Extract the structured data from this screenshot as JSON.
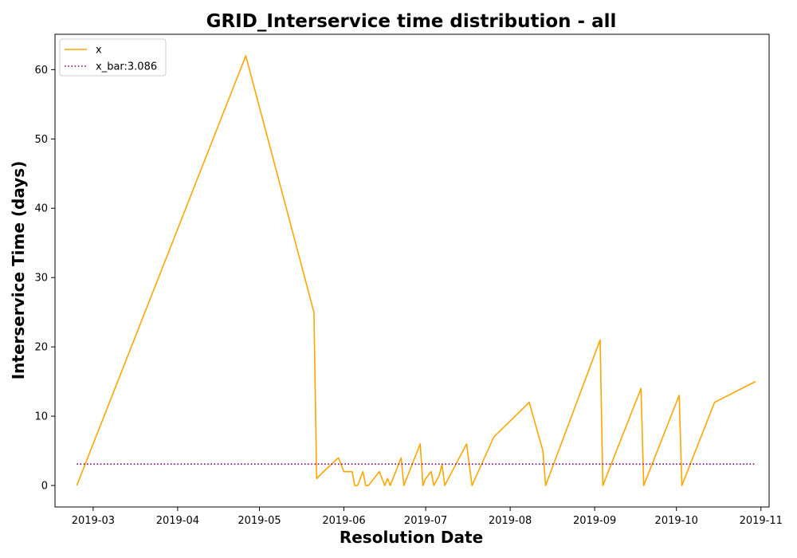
{
  "chart_data": {
    "type": "line",
    "title": "GRID_Interservice time distribution - all",
    "xlabel": "Resolution Date",
    "ylabel": "Interservice Time (days)",
    "xlim": [
      "2019-02-15",
      "2019-11-04"
    ],
    "ylim": [
      -3.1,
      65.1
    ],
    "x_ticks": [
      "2019-03-01",
      "2019-04-01",
      "2019-05-01",
      "2019-06-01",
      "2019-07-01",
      "2019-08-01",
      "2019-09-01",
      "2019-10-01",
      "2019-11-01"
    ],
    "x_tick_labels": [
      "2019-03",
      "2019-04",
      "2019-05",
      "2019-06",
      "2019-07",
      "2019-08",
      "2019-09",
      "2019-10",
      "2019-11"
    ],
    "y_ticks": [
      0,
      10,
      20,
      30,
      40,
      50,
      60
    ],
    "y_tick_labels": [
      "0",
      "10",
      "20",
      "30",
      "40",
      "50",
      "60"
    ],
    "grid": false,
    "legend_position": "top-left",
    "series": [
      {
        "name": "x",
        "style": "solid",
        "color": "#ffa500",
        "points": [
          [
            "2019-02-23",
            0
          ],
          [
            "2019-04-26",
            62
          ],
          [
            "2019-05-21",
            25
          ],
          [
            "2019-05-22",
            1
          ],
          [
            "2019-05-24",
            1.8
          ],
          [
            "2019-05-30",
            4
          ],
          [
            "2019-06-01",
            2
          ],
          [
            "2019-06-04",
            2
          ],
          [
            "2019-06-05",
            0
          ],
          [
            "2019-06-06",
            0
          ],
          [
            "2019-06-08",
            2
          ],
          [
            "2019-06-09",
            0
          ],
          [
            "2019-06-10",
            0
          ],
          [
            "2019-06-14",
            2
          ],
          [
            "2019-06-16",
            0
          ],
          [
            "2019-06-17",
            1
          ],
          [
            "2019-06-18",
            0
          ],
          [
            "2019-06-22",
            4
          ],
          [
            "2019-06-23",
            0
          ],
          [
            "2019-06-29",
            6
          ],
          [
            "2019-06-30",
            0
          ],
          [
            "2019-07-01",
            1
          ],
          [
            "2019-07-03",
            2
          ],
          [
            "2019-07-04",
            0
          ],
          [
            "2019-07-06",
            1.5
          ],
          [
            "2019-07-07",
            3
          ],
          [
            "2019-07-08",
            0
          ],
          [
            "2019-07-16",
            6
          ],
          [
            "2019-07-18",
            0
          ],
          [
            "2019-07-26",
            7
          ],
          [
            "2019-08-08",
            12
          ],
          [
            "2019-08-13",
            5
          ],
          [
            "2019-08-14",
            0
          ],
          [
            "2019-09-03",
            21
          ],
          [
            "2019-09-04",
            0
          ],
          [
            "2019-09-18",
            14
          ],
          [
            "2019-09-19",
            0
          ],
          [
            "2019-10-02",
            13
          ],
          [
            "2019-10-03",
            0
          ],
          [
            "2019-10-15",
            12
          ],
          [
            "2019-10-30",
            15
          ]
        ]
      },
      {
        "name": "x_bar:3.086",
        "style": "dotted",
        "color": "#800080",
        "points": [
          [
            "2019-02-23",
            3.086
          ],
          [
            "2019-10-30",
            3.086
          ]
        ]
      }
    ]
  }
}
